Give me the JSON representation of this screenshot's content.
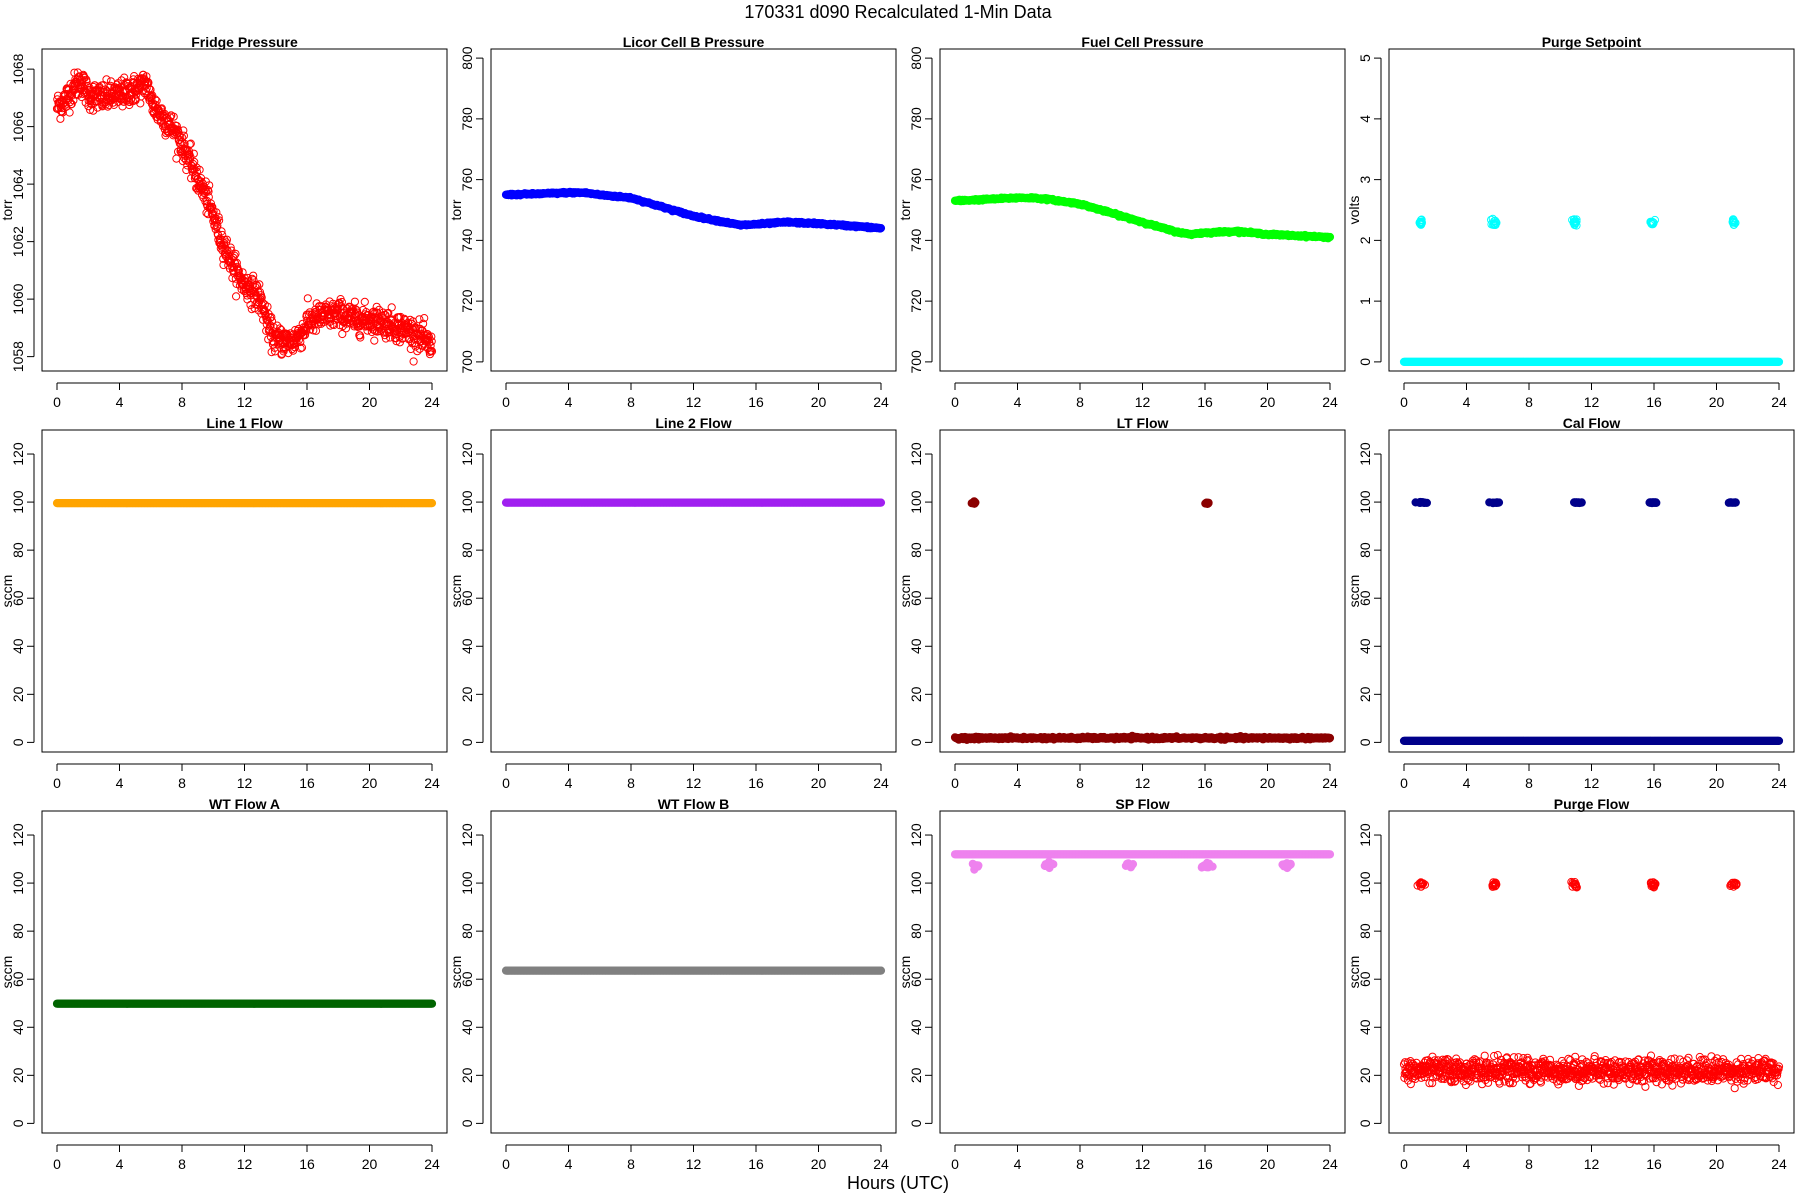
{
  "figure": {
    "title": "170331   d090   Recalculated 1-Min Data",
    "xlabel": "Hours (UTC)"
  },
  "chart_data": [
    {
      "type": "scatter",
      "title": "Fridge Pressure",
      "ylabel": "torr",
      "xlim": [
        0,
        24
      ],
      "ylim": [
        1057.5,
        1068.7
      ],
      "xticks": [
        "0",
        "4",
        "8",
        "12",
        "16",
        "20",
        "24"
      ],
      "yticks": [
        "1058",
        "1060",
        "1062",
        "1064",
        "1066",
        "1068"
      ],
      "series": [
        {
          "color": "#ff0000",
          "marker": "open-circle",
          "x": [
            0,
            0.5,
            1,
            1.5,
            2,
            3,
            4,
            5,
            5.8,
            6,
            6.5,
            7,
            7.5,
            8,
            8.5,
            9,
            9.5,
            10,
            10.5,
            11,
            11.5,
            12,
            12.5,
            13,
            13.3,
            13.6,
            14,
            15,
            15.8,
            16,
            16.5,
            17,
            18,
            19,
            20,
            21,
            22,
            23,
            24
          ],
          "y": [
            1066.7,
            1066.9,
            1067.3,
            1067.6,
            1067.1,
            1067.0,
            1067.1,
            1067.3,
            1067.5,
            1066.9,
            1066.5,
            1066.2,
            1065.9,
            1065.4,
            1064.8,
            1064.2,
            1063.6,
            1062.9,
            1062.1,
            1061.5,
            1060.9,
            1060.5,
            1060.3,
            1060.0,
            1059.5,
            1058.9,
            1058.6,
            1058.5,
            1058.9,
            1059.2,
            1059.3,
            1059.4,
            1059.5,
            1059.3,
            1059.3,
            1059.2,
            1059.0,
            1058.8,
            1058.3
          ],
          "spread": 0.5,
          "density": 1100
        }
      ]
    },
    {
      "type": "scatter",
      "title": "Licor Cell B Pressure",
      "ylabel": "torr",
      "xlim": [
        0,
        24
      ],
      "ylim": [
        697,
        803
      ],
      "xticks": [
        "0",
        "4",
        "8",
        "12",
        "16",
        "20",
        "24"
      ],
      "yticks": [
        "700",
        "720",
        "740",
        "760",
        "780",
        "800"
      ],
      "series": [
        {
          "color": "#0000ff",
          "marker": "filled-circle",
          "x": [
            0,
            2,
            4,
            5,
            6,
            8,
            10,
            12,
            14,
            15,
            16,
            18,
            20,
            22,
            24
          ],
          "y": [
            755,
            755.3,
            755.7,
            755.7,
            755,
            754,
            751,
            748,
            746,
            745,
            745.3,
            746,
            745.5,
            744.8,
            744
          ],
          "spread": 0.3,
          "density": 600
        }
      ]
    },
    {
      "type": "scatter",
      "title": "Fuel Cell Pressure",
      "ylabel": "torr",
      "xlim": [
        0,
        24
      ],
      "ylim": [
        697,
        803
      ],
      "xticks": [
        "0",
        "4",
        "8",
        "12",
        "16",
        "20",
        "24"
      ],
      "yticks": [
        "700",
        "720",
        "740",
        "760",
        "780",
        "800"
      ],
      "series": [
        {
          "color": "#00ff00",
          "marker": "filled-circle",
          "x": [
            0,
            2,
            4,
            5,
            6,
            8,
            10,
            12,
            14,
            15,
            16,
            18,
            20,
            22,
            24
          ],
          "y": [
            753,
            753.5,
            754,
            754,
            753.5,
            752,
            749,
            746,
            743,
            742,
            742.5,
            743,
            742,
            741.5,
            741
          ],
          "spread": 0.3,
          "density": 600
        }
      ]
    },
    {
      "type": "scatter",
      "title": "Purge Setpoint",
      "ylabel": "volts",
      "xlim": [
        0,
        24
      ],
      "ylim": [
        -0.15,
        5.15
      ],
      "xticks": [
        "0",
        "4",
        "8",
        "12",
        "16",
        "20",
        "24"
      ],
      "yticks": [
        "0",
        "1",
        "2",
        "3",
        "4",
        "5"
      ],
      "series": [
        {
          "color": "#00ffff",
          "marker": "filled-circle",
          "line_y": 0,
          "line_x": [
            0,
            24
          ],
          "density": 500
        },
        {
          "color": "#00ffff",
          "marker": "open-circle",
          "clusters": [
            {
              "x": 1.1,
              "y": 2.3
            },
            {
              "x": 5.8,
              "y": 2.3
            },
            {
              "x": 10.9,
              "y": 2.3
            },
            {
              "x": 15.9,
              "y": 2.3
            },
            {
              "x": 21.1,
              "y": 2.3
            }
          ],
          "cluster_spread": [
            0.15,
            0.06
          ]
        }
      ]
    },
    {
      "type": "scatter",
      "title": "Line 1 Flow",
      "ylabel": "sccm",
      "xlim": [
        0,
        24
      ],
      "ylim": [
        -4,
        130
      ],
      "xticks": [
        "0",
        "4",
        "8",
        "12",
        "16",
        "20",
        "24"
      ],
      "yticks": [
        "0",
        "20",
        "40",
        "60",
        "80",
        "100",
        "120"
      ],
      "series": [
        {
          "color": "#ffa500",
          "marker": "filled-circle",
          "line_y": 99.6,
          "line_x": [
            0,
            24
          ],
          "density": 500
        }
      ]
    },
    {
      "type": "scatter",
      "title": "Line 2 Flow",
      "ylabel": "sccm",
      "xlim": [
        0,
        24
      ],
      "ylim": [
        -4,
        130
      ],
      "xticks": [
        "0",
        "4",
        "8",
        "12",
        "16",
        "20",
        "24"
      ],
      "yticks": [
        "0",
        "20",
        "40",
        "60",
        "80",
        "100",
        "120"
      ],
      "series": [
        {
          "color": "#a020f0",
          "marker": "filled-circle",
          "line_y": 99.8,
          "line_x": [
            0,
            24
          ],
          "density": 500
        }
      ]
    },
    {
      "type": "scatter",
      "title": "LT Flow",
      "ylabel": "sccm",
      "xlim": [
        0,
        24
      ],
      "ylim": [
        -4,
        130
      ],
      "xticks": [
        "0",
        "4",
        "8",
        "12",
        "16",
        "20",
        "24"
      ],
      "yticks": [
        "0",
        "20",
        "40",
        "60",
        "80",
        "100",
        "120"
      ],
      "series": [
        {
          "color": "#8b0000",
          "marker": "filled-circle",
          "line_y": 1.8,
          "line_x": [
            0,
            24
          ],
          "spread": 0.5,
          "density": 600
        },
        {
          "color": "#8b0000",
          "marker": "filled-circle",
          "clusters": [
            {
              "x": 1.2,
              "y": 99.6
            },
            {
              "x": 16.1,
              "y": 99.6
            }
          ],
          "cluster_spread": [
            0.15,
            0.4
          ]
        }
      ]
    },
    {
      "type": "scatter",
      "title": "Cal Flow",
      "ylabel": "sccm",
      "xlim": [
        0,
        24
      ],
      "ylim": [
        -4,
        130
      ],
      "xticks": [
        "0",
        "4",
        "8",
        "12",
        "16",
        "20",
        "24"
      ],
      "yticks": [
        "0",
        "20",
        "40",
        "60",
        "80",
        "100",
        "120"
      ],
      "series": [
        {
          "color": "#00008b",
          "marker": "filled-circle",
          "line_y": 0.6,
          "line_x": [
            0,
            24
          ],
          "density": 500
        },
        {
          "color": "#00008b",
          "marker": "filled-circle",
          "clusters": [
            {
              "x": 1.1,
              "y": 99.8
            },
            {
              "x": 5.9,
              "y": 99.8
            },
            {
              "x": 11.0,
              "y": 99.8
            },
            {
              "x": 15.9,
              "y": 99.8
            },
            {
              "x": 21.0,
              "y": 99.8
            }
          ],
          "cluster_spread": [
            0.3,
            0.2
          ]
        }
      ]
    },
    {
      "type": "scatter",
      "title": "WT Flow A",
      "ylabel": "sccm",
      "xlim": [
        0,
        24
      ],
      "ylim": [
        -4,
        130
      ],
      "xticks": [
        "0",
        "4",
        "8",
        "12",
        "16",
        "20",
        "24"
      ],
      "yticks": [
        "0",
        "20",
        "40",
        "60",
        "80",
        "100",
        "120"
      ],
      "series": [
        {
          "color": "#006400",
          "marker": "filled-circle",
          "line_y": 49.8,
          "line_x": [
            0,
            24
          ],
          "density": 500
        }
      ]
    },
    {
      "type": "scatter",
      "title": "WT Flow B",
      "ylabel": "sccm",
      "xlim": [
        0,
        24
      ],
      "ylim": [
        -4,
        130
      ],
      "xticks": [
        "0",
        "4",
        "8",
        "12",
        "16",
        "20",
        "24"
      ],
      "yticks": [
        "0",
        "20",
        "40",
        "60",
        "80",
        "100",
        "120"
      ],
      "series": [
        {
          "color": "#808080",
          "marker": "filled-circle",
          "line_y": 63.6,
          "line_x": [
            0,
            24
          ],
          "density": 500
        }
      ]
    },
    {
      "type": "scatter",
      "title": "SP Flow",
      "ylabel": "sccm",
      "xlim": [
        0,
        24
      ],
      "ylim": [
        -4,
        130
      ],
      "xticks": [
        "0",
        "4",
        "8",
        "12",
        "16",
        "20",
        "24"
      ],
      "yticks": [
        "0",
        "20",
        "40",
        "60",
        "80",
        "100",
        "120"
      ],
      "series": [
        {
          "color": "#ee82ee",
          "marker": "filled-circle",
          "line_y": 112,
          "line_x": [
            0,
            24
          ],
          "density": 500
        },
        {
          "color": "#ee82ee",
          "marker": "filled-circle",
          "clusters": [
            {
              "x": 1.3,
              "y": 107
            },
            {
              "x": 6.0,
              "y": 107.5
            },
            {
              "x": 11.1,
              "y": 107.5
            },
            {
              "x": 16.1,
              "y": 107
            },
            {
              "x": 21.2,
              "y": 107.5
            }
          ],
          "cluster_spread": [
            0.3,
            1.0
          ]
        }
      ]
    },
    {
      "type": "scatter",
      "title": "Purge Flow",
      "ylabel": "sccm",
      "xlim": [
        0,
        24
      ],
      "ylim": [
        -4,
        130
      ],
      "xticks": [
        "0",
        "4",
        "8",
        "12",
        "16",
        "20",
        "24"
      ],
      "yticks": [
        "0",
        "20",
        "40",
        "60",
        "80",
        "100",
        "120"
      ],
      "series": [
        {
          "color": "#ff0000",
          "marker": "open-circle",
          "line_y": 22,
          "line_x": [
            0,
            24
          ],
          "spread": 5,
          "density": 1000
        },
        {
          "color": "#ff0000",
          "marker": "open-circle",
          "clusters": [
            {
              "x": 1.1,
              "y": 99.5
            },
            {
              "x": 5.8,
              "y": 99.5
            },
            {
              "x": 10.9,
              "y": 99.5
            },
            {
              "x": 15.9,
              "y": 99.5
            },
            {
              "x": 21.1,
              "y": 99.5
            }
          ],
          "cluster_spread": [
            0.2,
            1.2
          ]
        }
      ]
    }
  ]
}
